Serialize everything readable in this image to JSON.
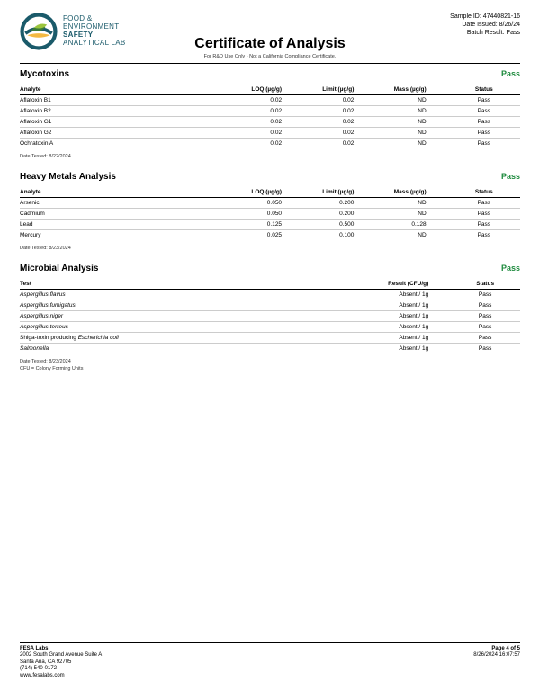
{
  "header": {
    "lab_name_l1": "FOOD &",
    "lab_name_l2": "ENVIRONMENT",
    "lab_name_l3": "SAFETY",
    "lab_name_l4": "ANALYTICAL LAB",
    "sample_id_label": "Sample ID:",
    "sample_id": "47440821-16",
    "date_issued_label": "Date Issued:",
    "date_issued": "8/26/24",
    "batch_result_label": "Batch Result:",
    "batch_result": "Pass",
    "title": "Certificate of Analysis",
    "subtitle": "For R&D Use Only - Not a California Compliance Certificate.",
    "logo_colors": {
      "outer": "#1a5a6a",
      "leaf_dark": "#3a7a3a",
      "leaf_light": "#9bc53d",
      "accent": "#f4b942"
    }
  },
  "mycotoxins": {
    "title": "Mycotoxins",
    "status": "Pass",
    "columns": [
      "Analyte",
      "LOQ (µg/g)",
      "Limit (µg/g)",
      "Mass (µg/g)",
      "Status"
    ],
    "rows": [
      {
        "analyte": "Aflatoxin B1",
        "loq": "0.02",
        "limit": "0.02",
        "mass": "ND",
        "status": "Pass"
      },
      {
        "analyte": "Aflatoxin B2",
        "loq": "0.02",
        "limit": "0.02",
        "mass": "ND",
        "status": "Pass"
      },
      {
        "analyte": "Aflatoxin G1",
        "loq": "0.02",
        "limit": "0.02",
        "mass": "ND",
        "status": "Pass"
      },
      {
        "analyte": "Aflatoxin G2",
        "loq": "0.02",
        "limit": "0.02",
        "mass": "ND",
        "status": "Pass"
      },
      {
        "analyte": "Ochratoxin A",
        "loq": "0.02",
        "limit": "0.02",
        "mass": "ND",
        "status": "Pass"
      }
    ],
    "date_tested_label": "Date Tested:",
    "date_tested": "8/22/2024"
  },
  "heavy_metals": {
    "title": "Heavy Metals Analysis",
    "status": "Pass",
    "columns": [
      "Analyte",
      "LOQ (µg/g)",
      "Limit (µg/g)",
      "Mass (µg/g)",
      "Status"
    ],
    "rows": [
      {
        "analyte": "Arsenic",
        "loq": "0.050",
        "limit": "0.200",
        "mass": "ND",
        "status": "Pass"
      },
      {
        "analyte": "Cadmium",
        "loq": "0.050",
        "limit": "0.200",
        "mass": "ND",
        "status": "Pass"
      },
      {
        "analyte": "Lead",
        "loq": "0.125",
        "limit": "0.500",
        "mass": "0.128",
        "status": "Pass"
      },
      {
        "analyte": "Mercury",
        "loq": "0.025",
        "limit": "0.100",
        "mass": "ND",
        "status": "Pass"
      }
    ],
    "date_tested_label": "Date Tested:",
    "date_tested": "8/23/2024"
  },
  "microbial": {
    "title": "Microbial Analysis",
    "status": "Pass",
    "columns": [
      "Test",
      "Result (CFU/g)",
      "Status"
    ],
    "rows": [
      {
        "test": "Aspergillus flavus",
        "italic": true,
        "result": "Absent / 1g",
        "status": "Pass"
      },
      {
        "test": "Aspergillus fumigatus",
        "italic": true,
        "result": "Absent / 1g",
        "status": "Pass"
      },
      {
        "test": "Aspergillus niger",
        "italic": true,
        "result": "Absent / 1g",
        "status": "Pass"
      },
      {
        "test": "Aspergillus terreus",
        "italic": true,
        "result": "Absent / 1g",
        "status": "Pass"
      },
      {
        "test": "Shiga-toxin producing Escherichia coli",
        "italic_part": "Escherichia coli",
        "prefix": "Shiga-toxin producing ",
        "result": "Absent / 1g",
        "status": "Pass"
      },
      {
        "test": "Salmonella",
        "italic": true,
        "result": "Absent / 1g",
        "status": "Pass"
      }
    ],
    "date_tested_label": "Date Tested:",
    "date_tested": "8/23/2024",
    "legend": "CFU = Colony Forming Units"
  },
  "footer": {
    "company": "FESA Labs",
    "addr1": "2002 South Grand Avenue Suite A",
    "addr2": "Santa Ana, CA 92705",
    "phone": "(714) 540-0172",
    "web": "www.fesalabs.com",
    "page": "Page 4 of 5",
    "timestamp": "8/26/2024 16:07:57"
  }
}
